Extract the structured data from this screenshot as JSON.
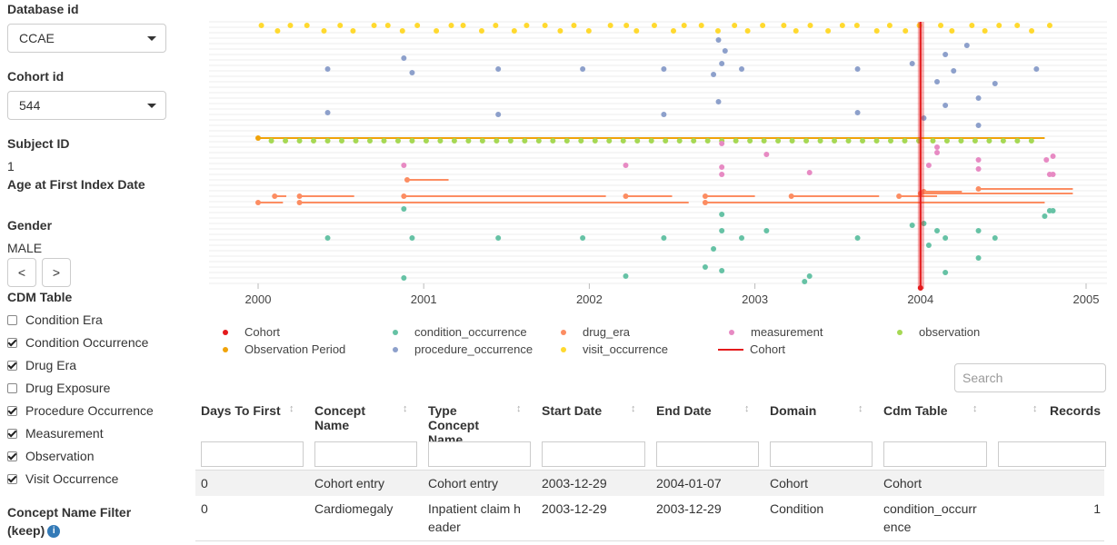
{
  "sidebar": {
    "database_label": "Database id",
    "database_value": "CCAE",
    "cohort_label": "Cohort id",
    "cohort_value": "544",
    "subject_label": "Subject ID",
    "subject_value": "1",
    "age_label": "Age at First Index Date",
    "gender_label": "Gender",
    "gender_value": "MALE",
    "prev_label": "<",
    "next_label": ">",
    "cdm_table_label": "CDM Table",
    "cdm_tables": [
      {
        "label": "Condition Era",
        "checked": false
      },
      {
        "label": "Condition Occurrence",
        "checked": true
      },
      {
        "label": "Drug Era",
        "checked": true
      },
      {
        "label": "Drug Exposure",
        "checked": false
      },
      {
        "label": "Procedure Occurrence",
        "checked": true
      },
      {
        "label": "Measurement",
        "checked": true
      },
      {
        "label": "Observation",
        "checked": true
      },
      {
        "label": "Visit Occurrence",
        "checked": true
      }
    ],
    "concept_filter_label_1": "Concept Name Filter",
    "concept_filter_label_2": "(keep)",
    "info_icon": "i"
  },
  "chart_data": {
    "type": "scatter",
    "x_ticks": [
      "2000",
      "2001",
      "2002",
      "2003",
      "2004",
      "2005"
    ],
    "xlim": [
      1999.75,
      2005.0
    ],
    "cohort_line_x": 2004.0,
    "colors": {
      "Cohort": "#e41a1c",
      "condition_occurrence": "#66c2a5",
      "drug_era": "#fc8d62",
      "measurement": "#e78ac3",
      "observation": "#a6d854",
      "Observation Period": "#f0a30a",
      "procedure_occurrence": "#8da0cb",
      "visit_occurrence": "#ffd92f"
    },
    "legend": [
      {
        "label": "Cohort",
        "kind": "dot",
        "color": "#e41a1c"
      },
      {
        "label": "condition_occurrence",
        "kind": "dot",
        "color": "#66c2a5"
      },
      {
        "label": "drug_era",
        "kind": "dot",
        "color": "#fc8d62"
      },
      {
        "label": "measurement",
        "kind": "dot",
        "color": "#e78ac3"
      },
      {
        "label": "observation",
        "kind": "dot",
        "color": "#a6d854"
      },
      {
        "label": "Observation Period",
        "kind": "dot",
        "color": "#f0a30a"
      },
      {
        "label": "procedure_occurrence",
        "kind": "dot",
        "color": "#8da0cb"
      },
      {
        "label": "visit_occurrence",
        "kind": "dot",
        "color": "#ffd92f"
      },
      {
        "label": "Cohort",
        "kind": "line",
        "color": "#e41a1c"
      }
    ]
  },
  "search_placeholder": "Search",
  "table": {
    "headers": [
      "Days To First",
      "Concept Name",
      "Type Concept Name",
      "Start Date",
      "End Date",
      "Domain",
      "Cdm Table",
      "Records"
    ],
    "rows": [
      [
        "0",
        "Cohort entry",
        "Cohort entry",
        "2003-12-29",
        "2004-01-07",
        "Cohort",
        "Cohort",
        ""
      ],
      [
        "0",
        "Cardiomegaly",
        "Inpatient claim header",
        "2003-12-29",
        "2003-12-29",
        "Condition",
        "condition_occurrence",
        "1"
      ]
    ]
  }
}
